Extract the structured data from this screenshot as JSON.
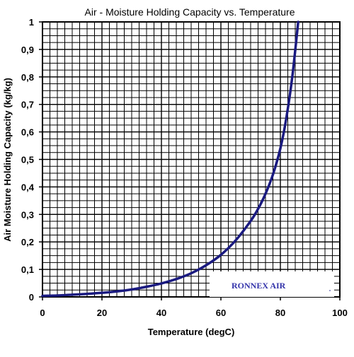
{
  "chart_data": {
    "type": "line",
    "title": "Air - Moisture Holding Capacity vs. Temperature",
    "xlabel": "Temperature (degC)",
    "ylabel": "Air Moisture Holding Capacity (kg/kg)",
    "xlim": [
      0,
      100
    ],
    "ylim": [
      0,
      1
    ],
    "x_ticks": [
      0,
      20,
      40,
      60,
      80,
      100
    ],
    "x_tick_labels": [
      "0",
      "20",
      "40",
      "60",
      "80",
      "100"
    ],
    "y_ticks": [
      0,
      0.1,
      0.2,
      0.3,
      0.4,
      0.5,
      0.6,
      0.7,
      0.8,
      0.9,
      1
    ],
    "y_tick_labels": [
      "0",
      "0,1",
      "0,2",
      "0,3",
      "0,4",
      "0,5",
      "0,6",
      "0,7",
      "0,8",
      "0,9",
      "1"
    ],
    "x_minor_step": 2.5,
    "y_minor_step": 0.025,
    "grid": true,
    "series": [
      {
        "color": "#1a1a80",
        "x": [
          0,
          5,
          10,
          15,
          20,
          25,
          30,
          35,
          40,
          45,
          50,
          55,
          60,
          65,
          70,
          72.5,
          75,
          77.5,
          80,
          82,
          84,
          86
        ],
        "y": [
          0.004,
          0.005,
          0.008,
          0.011,
          0.015,
          0.02,
          0.027,
          0.037,
          0.049,
          0.065,
          0.086,
          0.115,
          0.153,
          0.206,
          0.276,
          0.32,
          0.375,
          0.445,
          0.54,
          0.65,
          0.8,
          1.0
        ]
      }
    ],
    "annotations": [
      {
        "text": "RONNEX AIR",
        "color": "#3333aa"
      }
    ]
  }
}
